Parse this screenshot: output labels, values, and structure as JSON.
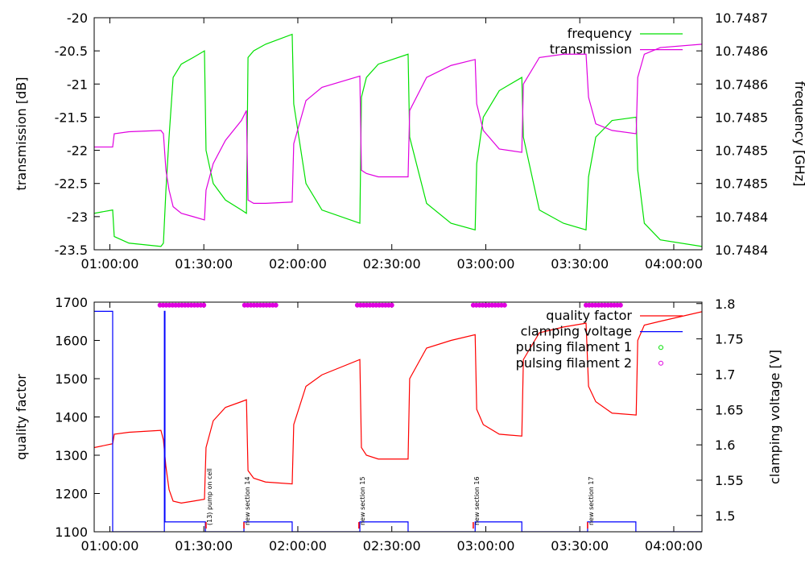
{
  "chart_data": [
    {
      "type": "line",
      "ylabel": "transmission [dB]",
      "y2label": "frequency [GHz]",
      "legend": "top right",
      "grid": false,
      "x": [
        55,
        60.9,
        61.4,
        66.1,
        76.3,
        77.1,
        77.9,
        78.9,
        80.2,
        82.8,
        86.6,
        90.2,
        90.7,
        93.0,
        96.9,
        102.0,
        103.6,
        104.1,
        105.9,
        109.7,
        118.2,
        118.7,
        122.6,
        127.7,
        139.8,
        140.3,
        141.9,
        145.7,
        155.2,
        155.7,
        161.1,
        168.9,
        176.6,
        177.1,
        179.2,
        184.3,
        191.5,
        192.0,
        197.1,
        204.8,
        212.0,
        212.8,
        215.1,
        220.3,
        228.0,
        228.5,
        230.6,
        235.7,
        249.0
      ],
      "xlim": [
        55,
        249
      ],
      "xticks": [
        {
          "value": 60,
          "label": "01:00:00"
        },
        {
          "value": 90,
          "label": "01:30:00"
        },
        {
          "value": 120,
          "label": "02:00:00"
        },
        {
          "value": 150,
          "label": "02:30:00"
        },
        {
          "value": 180,
          "label": "03:00:00"
        },
        {
          "value": 210,
          "label": "03:30:00"
        },
        {
          "value": 240,
          "label": "04:00:00"
        }
      ],
      "ylim": [
        -23.5,
        -20
      ],
      "yticks": [
        -23.5,
        -23,
        -22.5,
        -22,
        -21.5,
        -21,
        -20.5,
        -20
      ],
      "y2lim": [
        10.74838,
        10.74866
      ],
      "y2ticks": [
        {
          "value": 10.74838,
          "label": "10.7484"
        },
        {
          "value": 10.74842,
          "label": "10.7484"
        },
        {
          "value": 10.74846,
          "label": "10.7485"
        },
        10.7485,
        {
          "value": 10.74854,
          "label": "10.7485"
        },
        {
          "value": 10.74858,
          "label": "10.7486"
        },
        {
          "value": 10.74862,
          "label": "10.7486"
        },
        {
          "value": 10.74866,
          "label": "10.7487"
        }
      ],
      "series": [
        {
          "name": "frequency",
          "color": "#00e000",
          "axis": "y2",
          "values": [
            10.748424,
            10.748428,
            10.748396,
            10.748388,
            10.748384,
            10.748388,
            10.748452,
            10.748516,
            10.748588,
            10.748604,
            10.748612,
            10.74862,
            10.7485,
            10.74846,
            10.74844,
            10.748428,
            10.748424,
            10.748612,
            10.74862,
            10.748628,
            10.74864,
            10.748556,
            10.74846,
            10.748428,
            10.748412,
            10.748564,
            10.748588,
            10.748604,
            10.748616,
            10.748516,
            10.748436,
            10.748412,
            10.748404,
            10.748484,
            10.74854,
            10.748572,
            10.748588,
            10.748516,
            10.748428,
            10.748412,
            10.748404,
            10.748468,
            10.748516,
            10.748536,
            10.74854,
            10.748476,
            10.748412,
            10.748392,
            10.748384
          ]
        },
        {
          "name": "transmission",
          "color": "#e000e0",
          "values": [
            -21.95,
            -21.95,
            -21.75,
            -21.72,
            -21.7,
            -21.75,
            -22.3,
            -22.6,
            -22.85,
            -22.95,
            -23.0,
            -23.05,
            -22.6,
            -22.2,
            -21.85,
            -21.55,
            -21.4,
            -22.75,
            -22.8,
            -22.8,
            -22.78,
            -21.9,
            -21.25,
            -21.05,
            -20.88,
            -22.3,
            -22.35,
            -22.4,
            -22.4,
            -21.4,
            -20.9,
            -20.72,
            -20.63,
            -21.3,
            -21.7,
            -21.98,
            -22.03,
            -21.0,
            -20.6,
            -20.55,
            -20.55,
            -21.2,
            -21.6,
            -21.7,
            -21.75,
            -20.9,
            -20.55,
            -20.45,
            -20.4
          ]
        }
      ]
    },
    {
      "type": "line",
      "ylabel": "quality factor",
      "y2label": "clamping voltage [V]",
      "legend": "top right",
      "grid": false,
      "x": [
        55,
        60.9,
        61.4,
        66.1,
        76.3,
        77.1,
        77.9,
        78.9,
        80.2,
        82.8,
        86.6,
        90.2,
        90.7,
        93.0,
        96.9,
        102.0,
        103.6,
        104.1,
        105.9,
        109.7,
        118.2,
        118.7,
        122.6,
        127.7,
        139.8,
        140.3,
        141.9,
        145.7,
        155.2,
        155.7,
        161.1,
        168.9,
        176.6,
        177.1,
        179.2,
        184.3,
        191.5,
        192.0,
        197.1,
        204.8,
        212.0,
        212.8,
        215.1,
        220.3,
        228.0,
        228.5,
        230.6,
        235.7,
        249.0
      ],
      "xlim": [
        55,
        249
      ],
      "xticks": [
        {
          "value": 60,
          "label": "01:00:00"
        },
        {
          "value": 90,
          "label": "01:30:00"
        },
        {
          "value": 120,
          "label": "02:00:00"
        },
        {
          "value": 150,
          "label": "02:30:00"
        },
        {
          "value": 180,
          "label": "03:00:00"
        },
        {
          "value": 210,
          "label": "03:30:00"
        },
        {
          "value": 240,
          "label": "04:00:00"
        }
      ],
      "ylim": [
        1100,
        1700
      ],
      "yticks": [
        1100,
        1200,
        1300,
        1400,
        1500,
        1600,
        1700
      ],
      "y2lim": [
        1.477,
        1.802
      ],
      "y2ticks": [
        1.5,
        1.55,
        1.6,
        1.65,
        1.7,
        1.75,
        1.8
      ],
      "series": [
        {
          "name": "quality factor",
          "color": "#ff0000",
          "values": [
            1320,
            1330,
            1355,
            1360,
            1365,
            1340,
            1270,
            1210,
            1180,
            1175,
            1180,
            1185,
            1320,
            1390,
            1425,
            1440,
            1445,
            1260,
            1240,
            1230,
            1225,
            1380,
            1480,
            1510,
            1550,
            1320,
            1300,
            1290,
            1290,
            1500,
            1580,
            1600,
            1615,
            1420,
            1380,
            1355,
            1350,
            1550,
            1620,
            1635,
            1645,
            1480,
            1440,
            1410,
            1405,
            1600,
            1640,
            1650,
            1675
          ]
        },
        {
          "name": "clamping voltage",
          "color": "#0000ff",
          "axis": "y2",
          "x": [
            55,
            60.9,
            60.9,
            77.4,
            77.4,
            77.6,
            77.6,
            90.5,
            90.5,
            102.8,
            102.8,
            118.2,
            118.2,
            139.8,
            139.8,
            155.2,
            155.2,
            176.6,
            176.6,
            191.5,
            191.5,
            212.5,
            212.5,
            227.9,
            227.9,
            249
          ],
          "values": [
            1.789,
            1.789,
            1.477,
            1.477,
            1.789,
            1.789,
            1.491,
            1.491,
            1.477,
            1.477,
            1.491,
            1.491,
            1.477,
            1.477,
            1.491,
            1.491,
            1.477,
            1.477,
            1.491,
            1.491,
            1.477,
            1.477,
            1.491,
            1.491,
            1.477,
            1.477
          ]
        },
        {
          "name": "pulsing filament 1",
          "color": "#00e000",
          "type": "scatter",
          "x": [],
          "values": []
        },
        {
          "name": "pulsing filament 2",
          "color": "#e000e0",
          "type": "scatter",
          "x": [
            76,
            77,
            78,
            79,
            80,
            81,
            82,
            83,
            84,
            85,
            86,
            87,
            88,
            89,
            90,
            103,
            104,
            105,
            106,
            107,
            108,
            109,
            110,
            111,
            112,
            113,
            139,
            140,
            141,
            142,
            143,
            144,
            145,
            146,
            147,
            148,
            149,
            150,
            176,
            177,
            178,
            179,
            180,
            181,
            182,
            183,
            184,
            185,
            186,
            212,
            213,
            214,
            215,
            216,
            217,
            218,
            219,
            220,
            221,
            222,
            223
          ],
          "values": [
            1692,
            1692,
            1692,
            1692,
            1692,
            1692,
            1692,
            1692,
            1692,
            1692,
            1692,
            1692,
            1692,
            1692,
            1692,
            1692,
            1692,
            1692,
            1692,
            1692,
            1692,
            1692,
            1692,
            1692,
            1692,
            1692,
            1692,
            1692,
            1692,
            1692,
            1692,
            1692,
            1692,
            1692,
            1692,
            1692,
            1692,
            1692,
            1692,
            1692,
            1692,
            1692,
            1692,
            1692,
            1692,
            1692,
            1692,
            1692,
            1692,
            1692,
            1692,
            1692,
            1692,
            1692,
            1692,
            1692,
            1692,
            1692,
            1692,
            1692,
            1692
          ]
        }
      ],
      "annotations": [
        {
          "x": 90.7,
          "text": "(13) pump on cell"
        },
        {
          "x": 102.8,
          "text": "new section 14"
        },
        {
          "x": 139.5,
          "text": "new section 15"
        },
        {
          "x": 176.0,
          "text": "new section 16"
        },
        {
          "x": 212.5,
          "text": "new section 17"
        }
      ]
    }
  ]
}
